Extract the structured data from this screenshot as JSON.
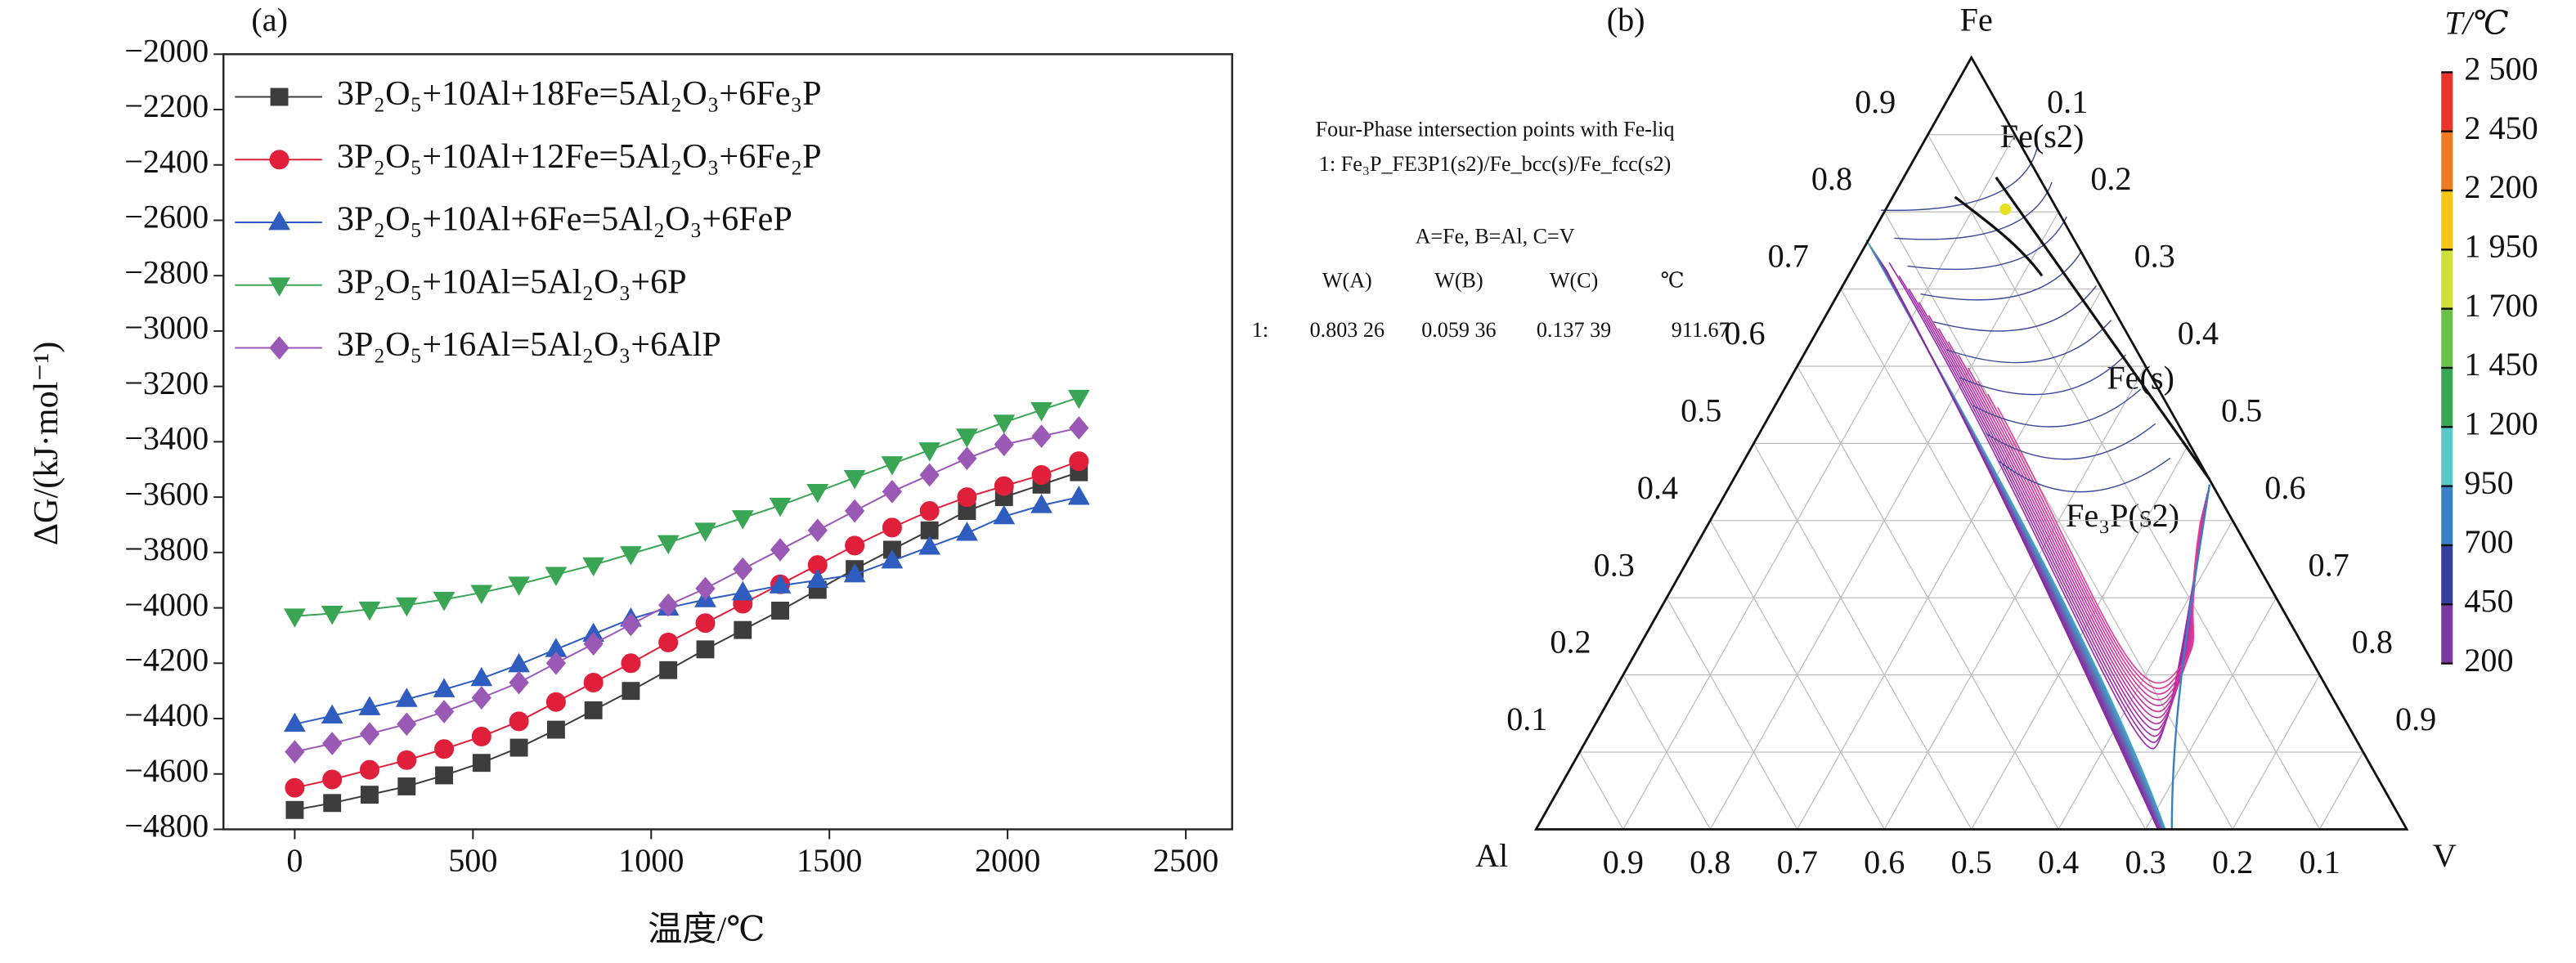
{
  "chart_data": [
    {
      "type": "line",
      "panel": "(a)",
      "xlabel": "温度/℃",
      "ylabel": "ΔG/(kJ·mol⁻¹)",
      "x": [
        0,
        105,
        210,
        314,
        419,
        524,
        629,
        733,
        838,
        943,
        1048,
        1152,
        1257,
        1362,
        1467,
        1571,
        1676,
        1781,
        1886,
        1990,
        2095,
        2200
      ],
      "xlim": [
        -200,
        2630
      ],
      "ylim": [
        -4800,
        -2000
      ],
      "xticks": [
        0,
        500,
        1000,
        1500,
        2000,
        2500
      ],
      "yticks": [
        {
          "value": -2000,
          "label": "−2000"
        },
        {
          "value": -2200,
          "label": "−2200"
        },
        {
          "value": -2400,
          "label": "−2400"
        },
        {
          "value": -2600,
          "label": "−2600"
        },
        {
          "value": -2800,
          "label": "−2800"
        },
        {
          "value": -3000,
          "label": "−3000"
        },
        {
          "value": -3200,
          "label": "−3200"
        },
        {
          "value": -3400,
          "label": "−3400"
        },
        {
          "value": -3600,
          "label": "−3600"
        },
        {
          "value": -3800,
          "label": "−3800"
        },
        {
          "value": -4000,
          "label": "−4000"
        },
        {
          "value": -4200,
          "label": "−4200"
        },
        {
          "value": -4400,
          "label": "−4400"
        },
        {
          "value": -4600,
          "label": "−4600"
        },
        {
          "value": -4800,
          "label": "−4800"
        }
      ],
      "legend": "upper left",
      "series": [
        {
          "name": "3P₂O₅+10Al+18Fe=5Al₂O₃+6Fe₃P",
          "color": "#3d3d3d",
          "marker": "square",
          "values": [
            -4730,
            -4705,
            -4675,
            -4645,
            -4605,
            -4560,
            -4505,
            -4440,
            -4370,
            -4300,
            -4225,
            -4150,
            -4080,
            -4010,
            -3935,
            -3860,
            -3790,
            -3720,
            -3650,
            -3600,
            -3555,
            -3510
          ]
        },
        {
          "name": "3P₂O₅+10Al+12Fe=5Al₂O₃+6Fe₂P",
          "color": "#e0203a",
          "marker": "circle",
          "values": [
            -4650,
            -4620,
            -4585,
            -4550,
            -4510,
            -4465,
            -4410,
            -4340,
            -4270,
            -4200,
            -4125,
            -4055,
            -3985,
            -3915,
            -3845,
            -3775,
            -3710,
            -3650,
            -3600,
            -3560,
            -3520,
            -3470
          ]
        },
        {
          "name": "3P₂O₅+10Al+6Fe=5Al₂O₃+6FeP",
          "color": "#2e5cbf",
          "marker": "triangle-up",
          "values": [
            -4420,
            -4390,
            -4360,
            -4330,
            -4295,
            -4255,
            -4205,
            -4150,
            -4095,
            -4040,
            -4000,
            -3970,
            -3945,
            -3920,
            -3900,
            -3880,
            -3830,
            -3780,
            -3730,
            -3670,
            -3630,
            -3600
          ]
        },
        {
          "name": "3P₂O₅+10Al=5Al₂O₃+6P",
          "color": "#3aa655",
          "marker": "triangle-down",
          "values": [
            -4030,
            -4020,
            -4005,
            -3990,
            -3970,
            -3945,
            -3915,
            -3880,
            -3845,
            -3805,
            -3765,
            -3720,
            -3675,
            -3630,
            -3580,
            -3530,
            -3480,
            -3430,
            -3380,
            -3330,
            -3285,
            -3240
          ]
        },
        {
          "name": "3P₂O₅+16Al=5Al₂O₃+6AlP",
          "color": "#9b59b6",
          "marker": "diamond",
          "values": [
            -4520,
            -4490,
            -4455,
            -4420,
            -4375,
            -4325,
            -4270,
            -4200,
            -4130,
            -4060,
            -3990,
            -3930,
            -3860,
            -3790,
            -3720,
            -3650,
            -3580,
            -3520,
            -3460,
            -3410,
            -3380,
            -3350
          ]
        }
      ]
    },
    {
      "type": "ternary",
      "panel": "(b)",
      "top": "Fe",
      "left": "Al",
      "right": "V",
      "fe_ticks": [
        0.1,
        0.2,
        0.3,
        0.4,
        0.5,
        0.6,
        0.7,
        0.8,
        0.9
      ],
      "v_ticks": [
        0.1,
        0.2,
        0.3,
        0.4,
        0.5,
        0.6,
        0.7,
        0.8,
        0.9
      ],
      "al_ticks": [
        0.1,
        0.2,
        0.3,
        0.4,
        0.5,
        0.6,
        0.7,
        0.8,
        0.9
      ],
      "annotation": {
        "title": "Four-Phase intersection points with Fe-liq",
        "subtitle": "1: Fe₃P_FE3P1(s2)/Fe_bcc(s)/Fe_fcc(s2)",
        "key": "A=Fe, B=Al, C=V",
        "headers": [
          "W(A)",
          "W(B)",
          "W(C)",
          "℃"
        ]
      },
      "point": {
        "row_label": "1:",
        "values": [
          0.80326,
          0.05936,
          0.13739,
          911.67
        ],
        "value_labels": [
          "0.803 26",
          "0.059 36",
          "0.137 39",
          "911.67"
        ],
        "color": "#e8e020"
      },
      "phase_labels": [
        "Fe(s2)",
        "Fe(s)",
        "Fe₃P(s2)"
      ],
      "colorbar": {
        "title": "T/℃",
        "ticks": [
          {
            "value": 2500,
            "label": "2 500"
          },
          {
            "value": 2450,
            "label": "2 450"
          },
          {
            "value": 2200,
            "label": "2 200"
          },
          {
            "value": 1950,
            "label": "1 950"
          },
          {
            "value": 1700,
            "label": "1 700"
          },
          {
            "value": 1450,
            "label": "1 450"
          },
          {
            "value": 1200,
            "label": "1 200"
          },
          950,
          700,
          450,
          200
        ],
        "colors": [
          "#e8342c",
          "#f07a22",
          "#f5c518",
          "#cfe03a",
          "#6cc04a",
          "#3aa655",
          "#5ac8c8",
          "#3b7fc4",
          "#34409c",
          "#7a3aa0"
        ]
      }
    }
  ]
}
